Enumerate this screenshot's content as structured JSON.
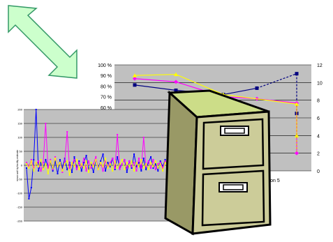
{
  "colors": {
    "plot_bg": "#c0c0c0",
    "grid": "#000000",
    "arrow_fill": "#ccffcc",
    "arrow_stroke": "#339966",
    "cabinet_front": "#cccc99",
    "cabinet_side": "#999966",
    "cabinet_top": "#ccdd88",
    "handle": "#ffffff",
    "navy": "#000080",
    "magenta": "#ff00ff",
    "yellow": "#ffff00",
    "blue": "#0000ff",
    "orange": "#ff9900"
  },
  "icons": {
    "arrow": "double-arrow-icon",
    "cabinet": "filing-cabinet-icon"
  },
  "chart_data": [
    {
      "type": "line",
      "title": "",
      "xlabel": "",
      "ylabel": "",
      "x_tick_label": "iteration 5",
      "left_axis": {
        "ticks": [
          "100 %",
          "90 %",
          "80 %",
          "70 %",
          "60 %"
        ],
        "values": [
          100,
          90,
          80,
          70,
          60
        ],
        "range": [
          0,
          100
        ]
      },
      "right_axis": {
        "ticks": [
          "12",
          "10",
          "8",
          "6",
          "4",
          "2",
          "0"
        ],
        "values": [
          12,
          10,
          8,
          6,
          4,
          2,
          0
        ],
        "range": [
          0,
          12
        ]
      },
      "series": [
        {
          "color_key": "navy",
          "marker": "square",
          "axis": "left",
          "values": [
            81,
            76,
            72,
            78,
            null
          ],
          "dashed_tail_to_right": 11,
          "end_right": 6.5
        },
        {
          "color_key": "magenta",
          "marker": "diamond",
          "axis": "left",
          "values": [
            87,
            84,
            70,
            68,
            64
          ],
          "end_right": 2
        },
        {
          "color_key": "yellow",
          "marker": "triangle",
          "axis": "left",
          "values": [
            90,
            91,
            72,
            null,
            63
          ],
          "end_right": 4
        },
        {
          "color_key": "orange",
          "marker": "none",
          "axis": "left",
          "values": [
            null,
            null,
            null,
            null,
            62
          ],
          "end_right": 2.2
        }
      ]
    },
    {
      "type": "line",
      "title": "",
      "xlabel": "",
      "ylabel": "mean wall by facility estimate",
      "y_ticks": [
        "200",
        "150",
        "100",
        "50",
        "0",
        "-50",
        "-100",
        "-150",
        "-200"
      ],
      "y_values": [
        200,
        150,
        100,
        50,
        0,
        -50,
        -100,
        -150,
        -200
      ],
      "ylim": [
        -200,
        200
      ],
      "series": [
        {
          "color_key": "blue",
          "values": [
            -10,
            -120,
            -80,
            20,
            200,
            -20,
            10,
            -15,
            20,
            -5,
            10,
            -20,
            15,
            -30,
            20,
            -10,
            25,
            -15,
            10,
            -25,
            30,
            -10,
            15,
            -20,
            10,
            35,
            -15,
            5,
            -25,
            20,
            -10,
            15,
            40,
            -20,
            10,
            -5,
            25,
            -15,
            30,
            -10,
            5,
            20,
            -25,
            15,
            -10,
            40,
            -5,
            10,
            -20,
            25,
            -15,
            10,
            30,
            -10,
            5,
            -20,
            15,
            -5,
            20,
            -10
          ]
        },
        {
          "color_key": "magenta",
          "values": [
            10,
            -5,
            20,
            -10,
            5,
            15,
            -20,
            10,
            150,
            -10,
            20,
            -15,
            30,
            -5,
            10,
            -25,
            15,
            120,
            -10,
            5,
            20,
            -15,
            10,
            -5,
            25,
            -20,
            15,
            -10,
            5,
            30,
            -15,
            10,
            -20,
            15,
            -5,
            10,
            25,
            -10,
            110,
            -15,
            5,
            20,
            -10,
            15,
            -5,
            10,
            -20,
            25,
            -10,
            100,
            -5,
            15,
            -10,
            20,
            -15,
            5,
            10,
            -10,
            15,
            -5
          ]
        },
        {
          "color_key": "yellow",
          "values": [
            5,
            -10,
            15,
            -20,
            10,
            -5,
            20,
            -15,
            5,
            -30,
            15,
            -10,
            25,
            -5,
            10,
            -20,
            5,
            15,
            -35,
            10,
            -5,
            20,
            -15,
            5,
            -10,
            15,
            -25,
            10,
            -5,
            20,
            -15,
            10,
            -5,
            25,
            -10,
            5,
            -20,
            15,
            -10,
            5,
            20,
            -15,
            10,
            -5,
            15,
            -20,
            10,
            -5,
            20,
            -10,
            5,
            -15,
            10,
            -5,
            15,
            -10,
            5,
            -20,
            10,
            -5
          ]
        }
      ]
    }
  ]
}
